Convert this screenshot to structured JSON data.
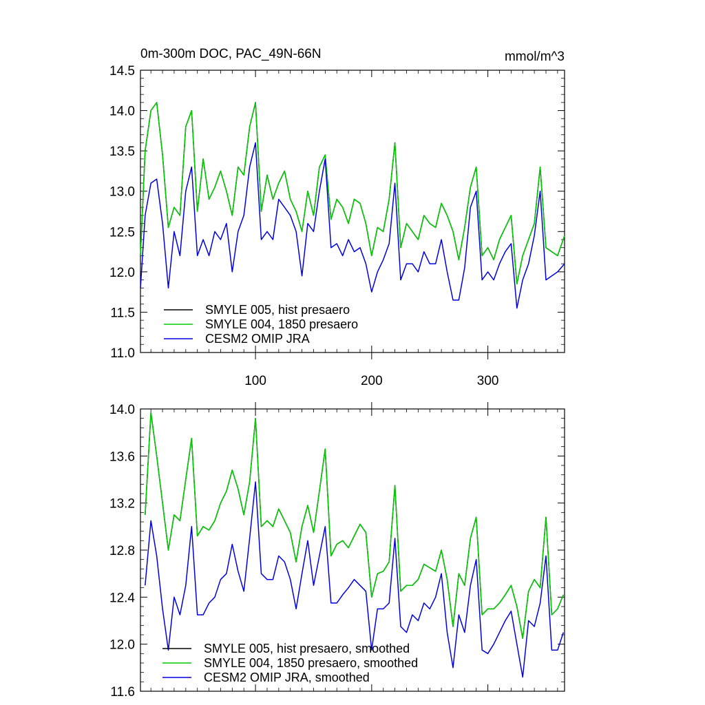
{
  "chart_data": [
    {
      "type": "line",
      "title": "0m-300m DOC, PAC_49N-66N",
      "units_label": "mmol/m^3",
      "xlim": [
        1,
        366
      ],
      "ylim": [
        11.0,
        14.5
      ],
      "x_ticks": [
        100,
        200,
        300
      ],
      "x_tick_labels": [
        "100",
        "200",
        "300"
      ],
      "y_ticks": [
        11.0,
        11.5,
        12.0,
        12.5,
        13.0,
        13.5,
        14.0,
        14.5
      ],
      "y_tick_labels": [
        "11.0",
        "11.5",
        "12.0",
        "12.5",
        "13.0",
        "13.5",
        "14.0",
        "14.5"
      ],
      "legend": [
        "SMYLE 005, hist presaero",
        "SMYLE 004, 1850 presaero",
        "CESM2 OMIP JRA"
      ],
      "series": [
        {
          "name": "SMYLE 005, hist presaero",
          "color": "#000000",
          "x": [
            1,
            5,
            10,
            15,
            20,
            25,
            30,
            35,
            40,
            45,
            50,
            55,
            60,
            65,
            70,
            75,
            80,
            85,
            90,
            95,
            100,
            105,
            110,
            115,
            120,
            125,
            130,
            135,
            140,
            145,
            150,
            155,
            160,
            165,
            170,
            175,
            180,
            185,
            190,
            195,
            200,
            205,
            210,
            215,
            220,
            225,
            230,
            235,
            240,
            245,
            250,
            255,
            260,
            265,
            270,
            275,
            280,
            285,
            290,
            295,
            300,
            305,
            310,
            315,
            320,
            325,
            330,
            335,
            340,
            345,
            350,
            355,
            360,
            366
          ],
          "values": [
            12.2,
            13.5,
            14.0,
            14.1,
            13.45,
            12.55,
            12.8,
            12.7,
            13.8,
            14.0,
            12.75,
            13.4,
            12.9,
            13.05,
            13.25,
            13.0,
            12.7,
            13.3,
            13.2,
            13.8,
            14.1,
            12.75,
            13.2,
            12.9,
            13.1,
            13.25,
            12.9,
            12.75,
            12.5,
            13.0,
            12.7,
            13.3,
            13.45,
            12.65,
            12.9,
            12.8,
            12.6,
            12.9,
            12.85,
            12.6,
            12.2,
            12.55,
            12.5,
            12.9,
            13.6,
            12.3,
            12.6,
            12.5,
            12.4,
            12.7,
            12.6,
            12.55,
            12.85,
            12.7,
            12.5,
            12.15,
            12.55,
            13.05,
            13.3,
            12.2,
            12.3,
            12.15,
            12.4,
            12.55,
            12.7,
            11.85,
            12.2,
            12.4,
            12.6,
            13.3,
            12.3,
            12.25,
            12.2,
            12.45
          ]
        },
        {
          "name": "SMYLE 004, 1850 presaero",
          "color": "#00cc00",
          "x": [
            1,
            5,
            10,
            15,
            20,
            25,
            30,
            35,
            40,
            45,
            50,
            55,
            60,
            65,
            70,
            75,
            80,
            85,
            90,
            95,
            100,
            105,
            110,
            115,
            120,
            125,
            130,
            135,
            140,
            145,
            150,
            155,
            160,
            165,
            170,
            175,
            180,
            185,
            190,
            195,
            200,
            205,
            210,
            215,
            220,
            225,
            230,
            235,
            240,
            245,
            250,
            255,
            260,
            265,
            270,
            275,
            280,
            285,
            290,
            295,
            300,
            305,
            310,
            315,
            320,
            325,
            330,
            335,
            340,
            345,
            350,
            355,
            360,
            366
          ],
          "values": [
            12.2,
            13.5,
            14.0,
            14.1,
            13.45,
            12.55,
            12.8,
            12.7,
            13.8,
            14.0,
            12.75,
            13.4,
            12.9,
            13.05,
            13.25,
            13.0,
            12.7,
            13.3,
            13.2,
            13.8,
            14.1,
            12.75,
            13.2,
            12.9,
            13.1,
            13.25,
            12.9,
            12.75,
            12.5,
            13.0,
            12.7,
            13.3,
            13.45,
            12.65,
            12.9,
            12.8,
            12.6,
            12.9,
            12.85,
            12.6,
            12.2,
            12.55,
            12.5,
            12.9,
            13.6,
            12.3,
            12.6,
            12.5,
            12.4,
            12.7,
            12.6,
            12.55,
            12.85,
            12.7,
            12.5,
            12.15,
            12.55,
            13.05,
            13.3,
            12.2,
            12.3,
            12.15,
            12.4,
            12.55,
            12.7,
            11.85,
            12.2,
            12.4,
            12.6,
            13.3,
            12.3,
            12.25,
            12.2,
            12.45
          ]
        },
        {
          "name": "CESM2 OMIP JRA",
          "color": "#0000dd",
          "x": [
            1,
            5,
            10,
            15,
            20,
            25,
            30,
            35,
            40,
            45,
            50,
            55,
            60,
            65,
            70,
            75,
            80,
            85,
            90,
            95,
            100,
            105,
            110,
            115,
            120,
            125,
            130,
            135,
            140,
            145,
            150,
            155,
            160,
            165,
            170,
            175,
            180,
            185,
            190,
            195,
            200,
            205,
            210,
            215,
            220,
            225,
            230,
            235,
            240,
            245,
            250,
            255,
            260,
            265,
            270,
            275,
            280,
            285,
            290,
            295,
            300,
            305,
            310,
            315,
            320,
            325,
            330,
            335,
            340,
            345,
            350,
            355,
            360,
            366
          ],
          "values": [
            11.8,
            12.7,
            13.1,
            13.15,
            12.6,
            11.8,
            12.5,
            12.2,
            13.0,
            13.3,
            12.2,
            12.4,
            12.2,
            12.5,
            12.4,
            12.6,
            12.0,
            12.5,
            12.7,
            13.3,
            13.6,
            12.4,
            12.5,
            12.4,
            12.9,
            12.8,
            12.7,
            12.5,
            11.95,
            12.6,
            12.5,
            13.0,
            13.4,
            12.3,
            12.35,
            12.2,
            12.4,
            12.25,
            12.3,
            12.1,
            11.75,
            12.0,
            12.15,
            12.35,
            13.1,
            11.9,
            12.1,
            12.1,
            12.0,
            12.25,
            12.1,
            12.1,
            12.4,
            12.0,
            11.65,
            11.65,
            12.05,
            12.8,
            13.0,
            11.9,
            12.0,
            11.9,
            12.1,
            12.25,
            12.35,
            11.55,
            11.9,
            12.1,
            12.45,
            13.0,
            11.9,
            11.95,
            12.0,
            12.1
          ]
        }
      ]
    },
    {
      "type": "line",
      "title": "",
      "xlim": [
        1,
        366
      ],
      "ylim": [
        11.6,
        14.0
      ],
      "x_ticks": [
        100,
        200,
        300
      ],
      "y_ticks": [
        11.6,
        12.0,
        12.4,
        12.8,
        13.2,
        13.6,
        14.0
      ],
      "y_tick_labels": [
        "11.6",
        "12.0",
        "12.4",
        "12.8",
        "13.2",
        "13.6",
        "14.0"
      ],
      "legend": [
        "SMYLE 005, hist presaero, smoothed",
        "SMYLE 004, 1850 presaero, smoothed",
        "CESM2 OMIP JRA, smoothed"
      ],
      "series": [
        {
          "name": "SMYLE 005, hist presaero, smoothed",
          "color": "#000000",
          "x": [
            5,
            10,
            15,
            20,
            25,
            30,
            35,
            40,
            45,
            50,
            55,
            60,
            65,
            70,
            75,
            80,
            85,
            90,
            95,
            100,
            105,
            110,
            115,
            120,
            125,
            130,
            135,
            140,
            145,
            150,
            155,
            160,
            165,
            170,
            175,
            180,
            185,
            190,
            195,
            200,
            205,
            210,
            215,
            220,
            225,
            230,
            235,
            240,
            245,
            250,
            255,
            260,
            265,
            270,
            275,
            280,
            285,
            290,
            295,
            300,
            305,
            310,
            315,
            320,
            325,
            330,
            335,
            340,
            345,
            350,
            355,
            360,
            365
          ],
          "values": [
            13.1,
            13.97,
            13.6,
            13.2,
            12.8,
            13.1,
            13.05,
            13.4,
            13.75,
            12.92,
            13.0,
            12.97,
            13.05,
            13.2,
            13.3,
            13.48,
            13.32,
            13.1,
            13.38,
            13.92,
            13.0,
            13.05,
            13.0,
            13.15,
            13.05,
            12.95,
            12.7,
            13.0,
            13.18,
            12.95,
            13.3,
            13.66,
            12.75,
            12.85,
            12.88,
            12.82,
            12.92,
            13.02,
            12.95,
            12.4,
            12.6,
            12.62,
            12.7,
            13.35,
            12.45,
            12.5,
            12.5,
            12.55,
            12.68,
            12.65,
            12.62,
            12.8,
            12.55,
            12.15,
            12.6,
            12.5,
            12.9,
            13.08,
            12.25,
            12.3,
            12.3,
            12.35,
            12.42,
            12.5,
            12.32,
            12.05,
            12.45,
            12.55,
            12.48,
            13.08,
            12.25,
            12.3,
            12.42
          ]
        },
        {
          "name": "SMYLE 004, 1850 presaero, smoothed",
          "color": "#00cc00",
          "x": [
            5,
            10,
            15,
            20,
            25,
            30,
            35,
            40,
            45,
            50,
            55,
            60,
            65,
            70,
            75,
            80,
            85,
            90,
            95,
            100,
            105,
            110,
            115,
            120,
            125,
            130,
            135,
            140,
            145,
            150,
            155,
            160,
            165,
            170,
            175,
            180,
            185,
            190,
            195,
            200,
            205,
            210,
            215,
            220,
            225,
            230,
            235,
            240,
            245,
            250,
            255,
            260,
            265,
            270,
            275,
            280,
            285,
            290,
            295,
            300,
            305,
            310,
            315,
            320,
            325,
            330,
            335,
            340,
            345,
            350,
            355,
            360,
            365
          ],
          "values": [
            13.1,
            13.97,
            13.6,
            13.2,
            12.8,
            13.1,
            13.05,
            13.4,
            13.75,
            12.92,
            13.0,
            12.97,
            13.05,
            13.2,
            13.3,
            13.48,
            13.32,
            13.1,
            13.38,
            13.92,
            13.0,
            13.05,
            13.0,
            13.15,
            13.05,
            12.95,
            12.7,
            13.0,
            13.18,
            12.95,
            13.3,
            13.66,
            12.75,
            12.85,
            12.88,
            12.82,
            12.92,
            13.02,
            12.95,
            12.4,
            12.6,
            12.62,
            12.7,
            13.35,
            12.45,
            12.5,
            12.5,
            12.55,
            12.68,
            12.65,
            12.62,
            12.8,
            12.55,
            12.15,
            12.6,
            12.5,
            12.9,
            13.08,
            12.25,
            12.3,
            12.3,
            12.35,
            12.42,
            12.5,
            12.32,
            12.05,
            12.45,
            12.55,
            12.48,
            13.08,
            12.25,
            12.3,
            12.42
          ]
        },
        {
          "name": "CESM2 OMIP JRA, smoothed",
          "color": "#0000dd",
          "x": [
            5,
            10,
            15,
            20,
            25,
            30,
            35,
            40,
            45,
            50,
            55,
            60,
            65,
            70,
            75,
            80,
            85,
            90,
            95,
            100,
            105,
            110,
            115,
            120,
            125,
            130,
            135,
            140,
            145,
            150,
            155,
            160,
            165,
            170,
            175,
            180,
            185,
            190,
            195,
            200,
            205,
            210,
            215,
            220,
            225,
            230,
            235,
            240,
            245,
            250,
            255,
            260,
            265,
            270,
            275,
            280,
            285,
            290,
            295,
            300,
            305,
            310,
            315,
            320,
            325,
            330,
            335,
            340,
            345,
            350,
            355,
            360,
            365
          ],
          "values": [
            12.5,
            13.05,
            12.75,
            12.3,
            11.95,
            12.4,
            12.25,
            12.5,
            13.0,
            12.25,
            12.25,
            12.35,
            12.4,
            12.55,
            12.6,
            12.85,
            12.62,
            12.45,
            12.9,
            13.38,
            12.6,
            12.55,
            12.55,
            12.75,
            12.7,
            12.55,
            12.3,
            12.6,
            12.88,
            12.5,
            12.75,
            13.0,
            12.35,
            12.35,
            12.42,
            12.48,
            12.55,
            12.5,
            12.45,
            11.95,
            12.3,
            12.3,
            12.35,
            12.9,
            12.15,
            12.1,
            12.25,
            12.2,
            12.35,
            12.3,
            12.4,
            12.6,
            12.1,
            11.8,
            12.25,
            12.1,
            12.5,
            12.72,
            11.95,
            11.92,
            12.0,
            12.1,
            12.2,
            12.28,
            12.0,
            11.72,
            12.2,
            12.15,
            12.35,
            12.75,
            11.95,
            11.95,
            12.1
          ]
        }
      ]
    }
  ]
}
